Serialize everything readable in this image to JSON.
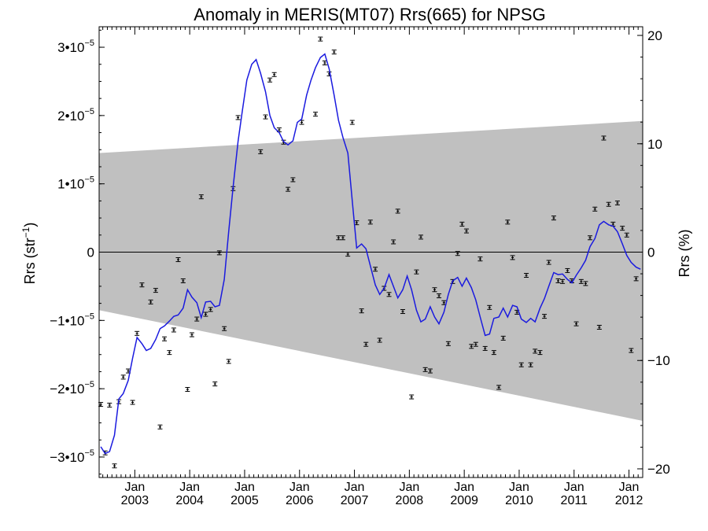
{
  "chart_data": {
    "type": "scatter",
    "title": "Anomaly in MERIS(MT07) Rrs(665) for NPSG",
    "ylabel_left": "Rrs (str⁻¹)",
    "ylabel_right": "Rrs (%)",
    "x_range": [
      2002.35,
      2012.25
    ],
    "y_range": [
      -3.3e-05,
      3.3e-05
    ],
    "y_right_range": [
      -20.8,
      20.8
    ],
    "left_ticks": [
      {
        "v": 3e-05,
        "label": "3•10",
        "exp": "−5"
      },
      {
        "v": 2e-05,
        "label": "2•10",
        "exp": "−5"
      },
      {
        "v": 1e-05,
        "label": "1•10",
        "exp": "−5"
      },
      {
        "v": 0,
        "label": "0",
        "exp": ""
      },
      {
        "v": -1e-05,
        "label": "−1•10",
        "exp": "−5"
      },
      {
        "v": -2e-05,
        "label": "−2•10",
        "exp": "−5"
      },
      {
        "v": -3e-05,
        "label": "−3•10",
        "exp": "−5"
      }
    ],
    "right_ticks": [
      {
        "v": 20,
        "label": "20"
      },
      {
        "v": 10,
        "label": "10"
      },
      {
        "v": 0,
        "label": "0"
      },
      {
        "v": -10,
        "label": "−10"
      },
      {
        "v": -20,
        "label": "−20"
      }
    ],
    "x_ticks": [
      {
        "v": 2003.0,
        "label": "Jan",
        "year": "2003"
      },
      {
        "v": 2004.0,
        "label": "Jan",
        "year": "2004"
      },
      {
        "v": 2005.0,
        "label": "Jan",
        "year": "2005"
      },
      {
        "v": 2006.0,
        "label": "Jan",
        "year": "2006"
      },
      {
        "v": 2007.0,
        "label": "Jan",
        "year": "2007"
      },
      {
        "v": 2008.0,
        "label": "Jan",
        "year": "2008"
      },
      {
        "v": 2009.0,
        "label": "Jan",
        "year": "2009"
      },
      {
        "v": 2010.0,
        "label": "Jan",
        "year": "2010"
      },
      {
        "v": 2011.0,
        "label": "Jan",
        "year": "2011"
      },
      {
        "v": 2012.0,
        "label": "Jan",
        "year": "2012"
      }
    ],
    "band": {
      "start": [
        2002.35,
        1.45e-05,
        -8.5e-06
      ],
      "end": [
        2012.25,
        1.92e-05,
        -2.47e-05
      ]
    },
    "points": [
      [
        2002.38,
        -2.23e-05
      ],
      [
        2002.54,
        -2.24e-05
      ],
      [
        2002.63,
        -3.13e-05
      ],
      [
        2002.71,
        -2.19e-05
      ],
      [
        2002.79,
        -1.83e-05
      ],
      [
        2002.88,
        -1.74e-05
      ],
      [
        2002.96,
        -2.2e-05
      ],
      [
        2003.04,
        -1.19e-05
      ],
      [
        2003.13,
        -4.8e-06
      ],
      [
        2003.29,
        -7.3e-06
      ],
      [
        2003.38,
        -5.6e-06
      ],
      [
        2003.46,
        -2.56e-05
      ],
      [
        2003.54,
        -1.27e-05
      ],
      [
        2003.63,
        -1.47e-05
      ],
      [
        2003.71,
        -1.14e-05
      ],
      [
        2003.79,
        -1.1e-06
      ],
      [
        2003.88,
        -4.2e-06
      ],
      [
        2003.96,
        -2.01e-05
      ],
      [
        2004.04,
        -1.21e-05
      ],
      [
        2004.13,
        -9.8e-06
      ],
      [
        2004.21,
        8.1e-06
      ],
      [
        2004.29,
        -9.1e-06
      ],
      [
        2004.38,
        -8.4e-06
      ],
      [
        2004.46,
        -1.93e-05
      ],
      [
        2004.54,
        -1e-07
      ],
      [
        2004.63,
        -1.12e-05
      ],
      [
        2004.71,
        -1.6e-05
      ],
      [
        2004.79,
        9.3e-06
      ],
      [
        2004.88,
        1.97e-05
      ],
      [
        2005.29,
        1.47e-05
      ],
      [
        2005.38,
        1.98e-05
      ],
      [
        2005.46,
        2.52e-05
      ],
      [
        2005.54,
        2.6e-05
      ],
      [
        2005.63,
        1.79e-05
      ],
      [
        2005.71,
        1.61e-05
      ],
      [
        2005.79,
        9.2e-06
      ],
      [
        2005.88,
        1.06e-05
      ],
      [
        2006.04,
        1.9e-05
      ],
      [
        2006.29,
        2.02e-05
      ],
      [
        2006.38,
        3.12e-05
      ],
      [
        2006.46,
        2.77e-05
      ],
      [
        2006.54,
        2.61e-05
      ],
      [
        2006.63,
        2.93e-05
      ],
      [
        2006.71,
        2.1e-06
      ],
      [
        2006.79,
        2.1e-06
      ],
      [
        2006.88,
        -3e-07
      ],
      [
        2006.96,
        1.9e-05
      ],
      [
        2007.04,
        4.3e-06
      ],
      [
        2007.13,
        -8.6e-06
      ],
      [
        2007.21,
        -1.35e-05
      ],
      [
        2007.29,
        4.4e-06
      ],
      [
        2007.38,
        -2.5e-06
      ],
      [
        2007.46,
        -1.29e-05
      ],
      [
        2007.54,
        -5.3e-06
      ],
      [
        2007.63,
        -6.2e-06
      ],
      [
        2007.71,
        1.5e-06
      ],
      [
        2007.79,
        6e-06
      ],
      [
        2007.88,
        -8.7e-06
      ],
      [
        2008.04,
        -2.12e-05
      ],
      [
        2008.13,
        -2.9e-06
      ],
      [
        2008.21,
        2.2e-06
      ],
      [
        2008.29,
        -1.72e-05
      ],
      [
        2008.38,
        -1.74e-05
      ],
      [
        2008.46,
        -5.5e-06
      ],
      [
        2008.54,
        -6.4e-06
      ],
      [
        2008.63,
        -7.4e-06
      ],
      [
        2008.71,
        -1.34e-05
      ],
      [
        2008.79,
        -4.3e-06
      ],
      [
        2008.88,
        -2e-07
      ],
      [
        2008.96,
        4.1e-06
      ],
      [
        2009.04,
        3.1e-06
      ],
      [
        2009.13,
        -1.38e-05
      ],
      [
        2009.21,
        -1.35e-05
      ],
      [
        2009.29,
        -1e-06
      ],
      [
        2009.38,
        -1.41e-05
      ],
      [
        2009.46,
        -8.1e-06
      ],
      [
        2009.54,
        -1.47e-05
      ],
      [
        2009.63,
        -1.98e-05
      ],
      [
        2009.71,
        -1.26e-05
      ],
      [
        2009.79,
        4.4e-06
      ],
      [
        2009.88,
        -8e-07
      ],
      [
        2009.96,
        -8.8e-06
      ],
      [
        2010.04,
        -1.65e-05
      ],
      [
        2010.13,
        -3.4e-06
      ],
      [
        2010.21,
        -1.65e-05
      ],
      [
        2010.29,
        -1.45e-05
      ],
      [
        2010.38,
        -1.47e-05
      ],
      [
        2010.46,
        -9.4e-06
      ],
      [
        2010.54,
        -1.5e-06
      ],
      [
        2010.63,
        5e-06
      ],
      [
        2010.71,
        -4.2e-06
      ],
      [
        2010.79,
        -4.3e-06
      ],
      [
        2010.88,
        -2.7e-06
      ],
      [
        2010.96,
        -4.2e-06
      ],
      [
        2011.04,
        -1.05e-05
      ],
      [
        2011.13,
        -4.3e-06
      ],
      [
        2011.21,
        -4.6e-06
      ],
      [
        2011.29,
        2.1e-06
      ],
      [
        2011.38,
        6.3e-06
      ],
      [
        2011.46,
        -1.1e-05
      ],
      [
        2011.54,
        1.67e-05
      ],
      [
        2011.63,
        7e-06
      ],
      [
        2011.71,
        4.1e-06
      ],
      [
        2011.79,
        7.2e-06
      ],
      [
        2011.88,
        3.5e-06
      ],
      [
        2011.96,
        2.5e-06
      ],
      [
        2012.04,
        -1.44e-05
      ],
      [
        2012.13,
        -3.9e-06
      ],
      [
        2002.46,
        -2.94e-05
      ]
    ],
    "smooth": [
      [
        2002.38,
        -2.85e-05
      ],
      [
        2002.46,
        -2.95e-05
      ],
      [
        2002.54,
        -2.92e-05
      ],
      [
        2002.63,
        -2.68e-05
      ],
      [
        2002.71,
        -2.15e-05
      ],
      [
        2002.79,
        -2.07e-05
      ],
      [
        2002.88,
        -1.88e-05
      ],
      [
        2002.96,
        -1.55e-05
      ],
      [
        2003.04,
        -1.25e-05
      ],
      [
        2003.13,
        -1.34e-05
      ],
      [
        2003.21,
        -1.44e-05
      ],
      [
        2003.29,
        -1.41e-05
      ],
      [
        2003.38,
        -1.28e-05
      ],
      [
        2003.46,
        -1.12e-05
      ],
      [
        2003.54,
        -1.08e-05
      ],
      [
        2003.63,
        -1.01e-05
      ],
      [
        2003.71,
        -9.4e-06
      ],
      [
        2003.79,
        -9.2e-06
      ],
      [
        2003.88,
        -8.2e-06
      ],
      [
        2003.96,
        -5.5e-06
      ],
      [
        2004.04,
        -6.6e-06
      ],
      [
        2004.13,
        -7.4e-06
      ],
      [
        2004.21,
        -9.6e-06
      ],
      [
        2004.29,
        -7.3e-06
      ],
      [
        2004.38,
        -7.2e-06
      ],
      [
        2004.46,
        -8e-06
      ],
      [
        2004.54,
        -7.8e-06
      ],
      [
        2004.63,
        -4e-06
      ],
      [
        2004.71,
        3e-06
      ],
      [
        2004.79,
        9.5e-06
      ],
      [
        2004.88,
        1.62e-05
      ],
      [
        2004.96,
        2.08e-05
      ],
      [
        2005.04,
        2.52e-05
      ],
      [
        2005.13,
        2.75e-05
      ],
      [
        2005.21,
        2.82e-05
      ],
      [
        2005.29,
        2.62e-05
      ],
      [
        2005.38,
        2.35e-05
      ],
      [
        2005.46,
        2e-05
      ],
      [
        2005.54,
        1.82e-05
      ],
      [
        2005.63,
        1.75e-05
      ],
      [
        2005.71,
        1.62e-05
      ],
      [
        2005.79,
        1.57e-05
      ],
      [
        2005.88,
        1.63e-05
      ],
      [
        2005.96,
        1.9e-05
      ],
      [
        2006.04,
        1.95e-05
      ],
      [
        2006.13,
        2.3e-05
      ],
      [
        2006.21,
        2.52e-05
      ],
      [
        2006.29,
        2.7e-05
      ],
      [
        2006.38,
        2.85e-05
      ],
      [
        2006.46,
        2.9e-05
      ],
      [
        2006.54,
        2.68e-05
      ],
      [
        2006.63,
        2.3e-05
      ],
      [
        2006.71,
        1.93e-05
      ],
      [
        2006.79,
        1.68e-05
      ],
      [
        2006.88,
        1.45e-05
      ],
      [
        2006.96,
        7.5e-06
      ],
      [
        2007.04,
        6e-07
      ],
      [
        2007.13,
        1.2e-06
      ],
      [
        2007.21,
        5e-07
      ],
      [
        2007.29,
        -2e-06
      ],
      [
        2007.38,
        -4.8e-06
      ],
      [
        2007.46,
        -6.2e-06
      ],
      [
        2007.54,
        -5.3e-06
      ],
      [
        2007.63,
        -3.3e-06
      ],
      [
        2007.71,
        -5e-06
      ],
      [
        2007.79,
        -6.7e-06
      ],
      [
        2007.88,
        -5.5e-06
      ],
      [
        2007.96,
        -3.5e-06
      ],
      [
        2008.04,
        -5.5e-06
      ],
      [
        2008.13,
        -8.5e-06
      ],
      [
        2008.21,
        -1.02e-05
      ],
      [
        2008.29,
        -9.8e-06
      ],
      [
        2008.38,
        -8e-06
      ],
      [
        2008.46,
        -9.5e-06
      ],
      [
        2008.54,
        -1.05e-05
      ],
      [
        2008.63,
        -8.8e-06
      ],
      [
        2008.71,
        -6.2e-06
      ],
      [
        2008.79,
        -4.2e-06
      ],
      [
        2008.88,
        -3.7e-06
      ],
      [
        2008.96,
        -5e-06
      ],
      [
        2009.04,
        -3.8e-06
      ],
      [
        2009.13,
        -5.2e-06
      ],
      [
        2009.21,
        -7e-06
      ],
      [
        2009.29,
        -9.5e-06
      ],
      [
        2009.38,
        -1.22e-05
      ],
      [
        2009.46,
        -1.2e-05
      ],
      [
        2009.54,
        -9.7e-06
      ],
      [
        2009.63,
        -9.5e-06
      ],
      [
        2009.71,
        -8.2e-06
      ],
      [
        2009.79,
        -9.5e-06
      ],
      [
        2009.88,
        -7.8e-06
      ],
      [
        2009.96,
        -8e-06
      ],
      [
        2010.04,
        -9.8e-06
      ],
      [
        2010.13,
        -1.03e-05
      ],
      [
        2010.21,
        -9.7e-06
      ],
      [
        2010.29,
        -1.02e-05
      ],
      [
        2010.38,
        -8.2e-06
      ],
      [
        2010.46,
        -6.8e-06
      ],
      [
        2010.54,
        -5e-06
      ],
      [
        2010.63,
        -3e-06
      ],
      [
        2010.71,
        -3.3e-06
      ],
      [
        2010.79,
        -3.2e-06
      ],
      [
        2010.88,
        -4e-06
      ],
      [
        2010.96,
        -4.5e-06
      ],
      [
        2011.04,
        -3.4e-06
      ],
      [
        2011.13,
        -2.3e-06
      ],
      [
        2011.21,
        -1.2e-06
      ],
      [
        2011.29,
        8e-07
      ],
      [
        2011.38,
        2e-06
      ],
      [
        2011.46,
        4e-06
      ],
      [
        2011.54,
        4.5e-06
      ],
      [
        2011.63,
        4e-06
      ],
      [
        2011.71,
        3.8e-06
      ],
      [
        2011.79,
        3e-06
      ],
      [
        2011.88,
        1.2e-06
      ],
      [
        2011.96,
        -5e-07
      ],
      [
        2012.04,
        -1.5e-06
      ],
      [
        2012.13,
        -2.2e-06
      ],
      [
        2012.21,
        -2.5e-06
      ]
    ],
    "colors": {
      "band": "#c0c0c0",
      "smooth": "#1a1adf",
      "points": "#000000"
    }
  }
}
